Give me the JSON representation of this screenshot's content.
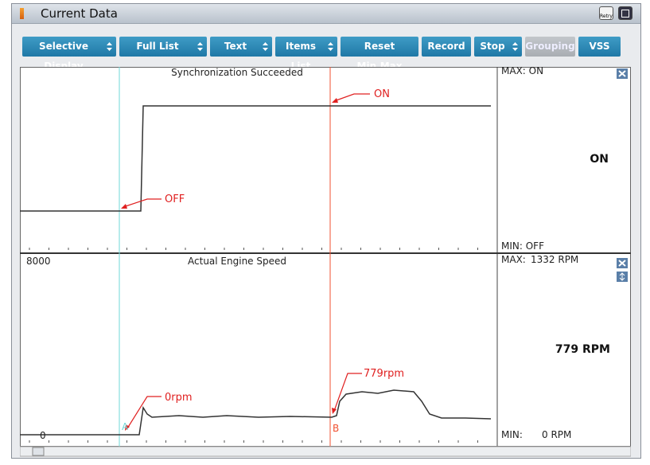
{
  "window": {
    "title": "Current Data",
    "retry_label": "Retry"
  },
  "toolbar": {
    "buttons": [
      "Selective Display",
      "Full List",
      "Text",
      "Items List",
      "Reset Min.Max",
      "Record",
      "Stop",
      "Grouping",
      "VSS"
    ]
  },
  "panels": [
    {
      "title": "Synchronization Succeeded",
      "max_label": "MAX: ON",
      "current": "ON",
      "min_label": "MIN: OFF",
      "annotations": [
        "ON",
        "OFF"
      ]
    },
    {
      "title": "Actual Engine Speed",
      "axis_top": "8000",
      "axis_bottom": "0",
      "max_label": "MAX:",
      "max_value": "1332 RPM",
      "current": "779 RPM",
      "min_label": "MIN:",
      "min_value": "0 RPM",
      "annotations": [
        "779rpm",
        "0rpm"
      ],
      "markers": [
        "A",
        "B"
      ]
    }
  ]
}
